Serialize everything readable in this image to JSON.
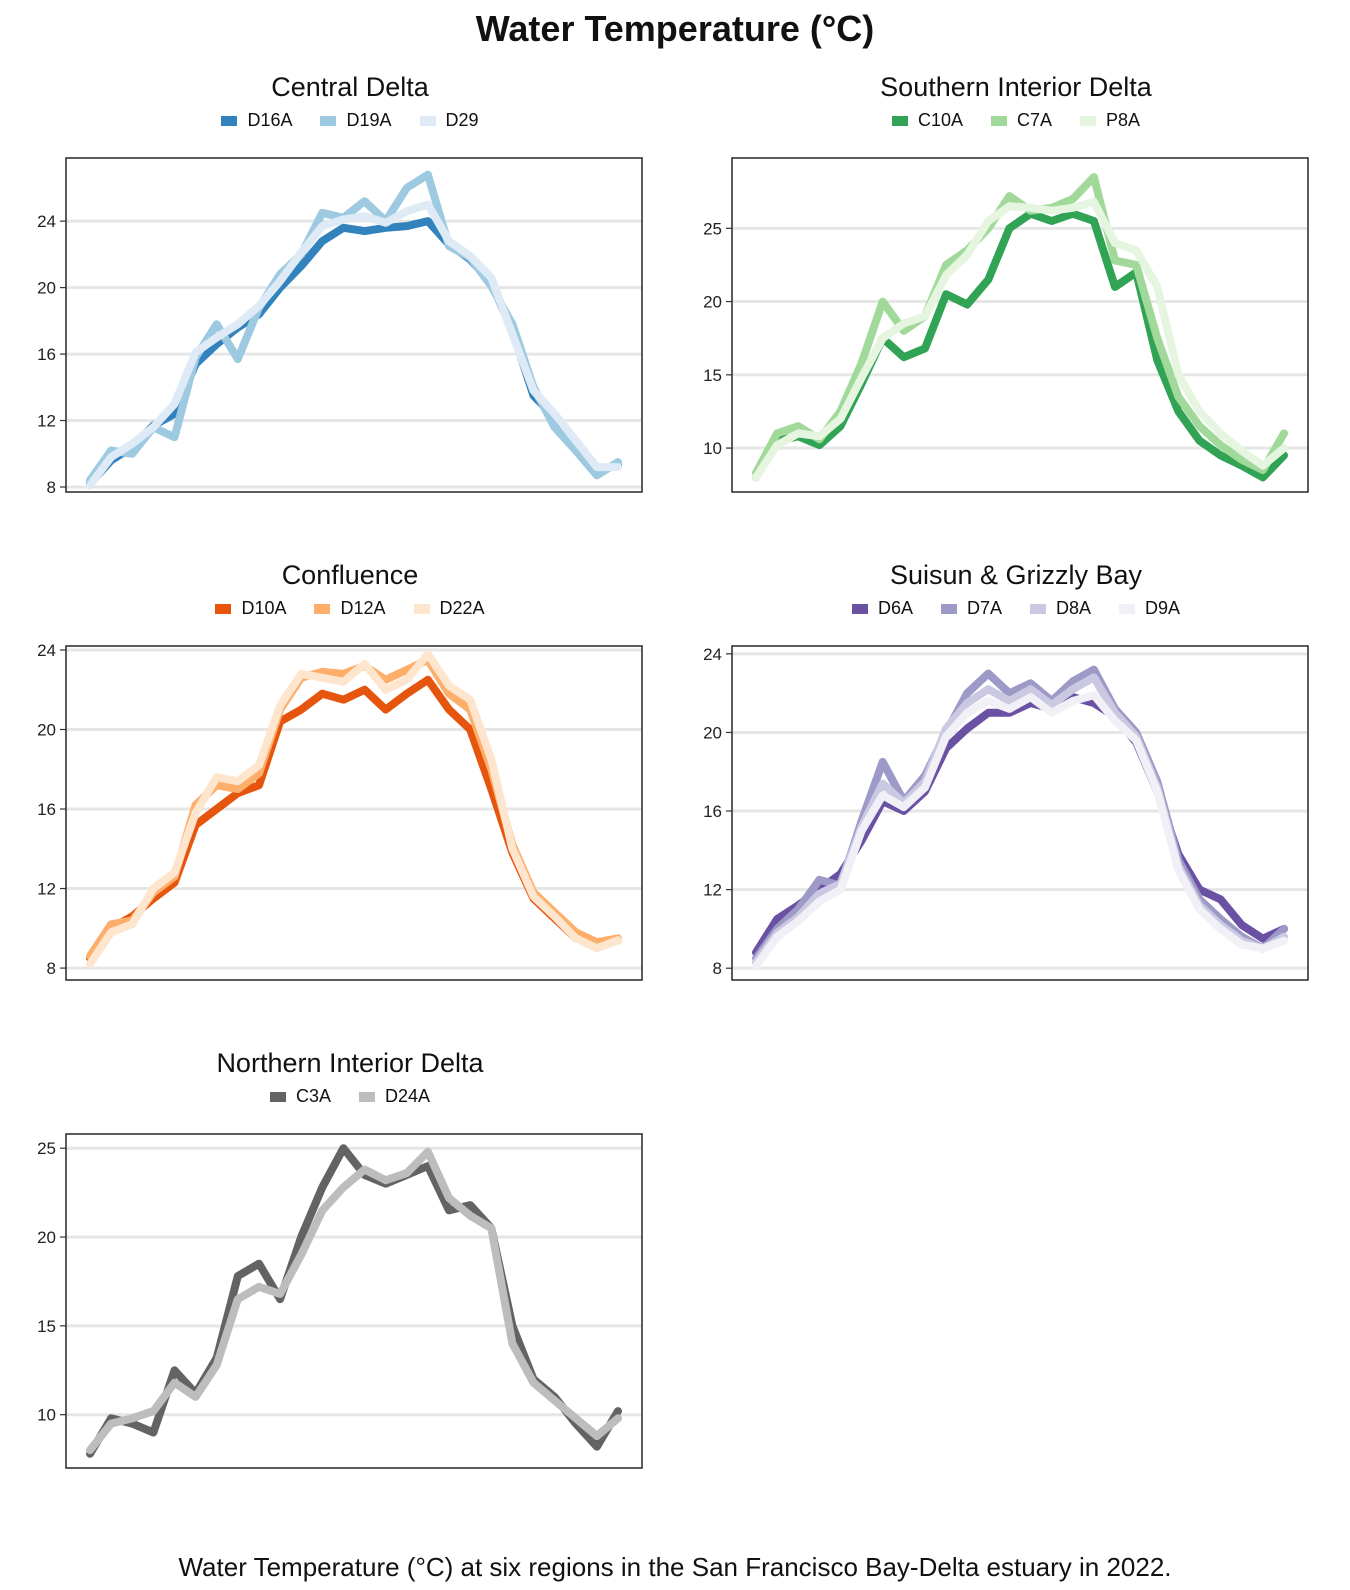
{
  "title": "Water Temperature (°C)",
  "caption": "Water Temperature (°C) at six regions in the San Francisco Bay-Delta estuary in 2022.",
  "chart_data": [
    {
      "type": "line",
      "title": "Central Delta",
      "xlabel": "",
      "ylabel": "",
      "ylim": [
        7.7,
        27.8
      ],
      "yticks": [
        8,
        12,
        16,
        20,
        24
      ],
      "x_range": [
        0,
        100
      ],
      "grid": "horizontal",
      "legend": "top",
      "series": [
        {
          "name": "D16A",
          "color": "#3182bd",
          "x": [
            0,
            4,
            8,
            12,
            16,
            20,
            24,
            28,
            32,
            36,
            40,
            44,
            48,
            52,
            56,
            60,
            64,
            68,
            72,
            76,
            80,
            84,
            88,
            92,
            96,
            100
          ],
          "y": [
            8.2,
            9.6,
            10.4,
            11.7,
            12.4,
            15.4,
            16.6,
            17.6,
            18.4,
            20.0,
            21.3,
            22.8,
            23.6,
            23.4,
            23.6,
            23.7,
            24.0,
            22.6,
            21.7,
            20.3,
            17.4,
            13.5,
            12.2,
            10.6,
            9.0,
            9.3
          ]
        },
        {
          "name": "D19A",
          "color": "#9ecae1",
          "x": [
            0,
            4,
            8,
            12,
            16,
            20,
            24,
            28,
            32,
            36,
            40,
            44,
            48,
            52,
            56,
            60,
            64,
            68,
            72,
            76,
            80,
            84,
            88,
            92,
            96,
            100
          ],
          "y": [
            8.4,
            10.2,
            10.0,
            11.6,
            11.0,
            15.8,
            17.8,
            15.7,
            18.8,
            20.8,
            22.0,
            24.5,
            24.2,
            25.2,
            24.0,
            26.0,
            26.8,
            22.5,
            21.8,
            20.1,
            17.8,
            14.0,
            11.6,
            10.2,
            8.7,
            9.5
          ]
        },
        {
          "name": "D29",
          "color": "#deebf7",
          "x": [
            0,
            4,
            8,
            12,
            16,
            20,
            24,
            28,
            32,
            36,
            40,
            44,
            48,
            52,
            56,
            60,
            64,
            68,
            72,
            76,
            80,
            84,
            88,
            92,
            96,
            100
          ],
          "y": [
            8.1,
            9.8,
            10.6,
            11.6,
            13.0,
            16.1,
            17.0,
            17.8,
            18.9,
            20.4,
            22.1,
            23.7,
            24.1,
            24.3,
            23.9,
            24.6,
            25.0,
            22.8,
            21.9,
            20.6,
            17.2,
            13.8,
            12.4,
            10.8,
            9.2,
            9.2
          ]
        }
      ]
    },
    {
      "type": "line",
      "title": "Southern Interior Delta",
      "xlabel": "",
      "ylabel": "",
      "ylim": [
        7.0,
        29.8
      ],
      "yticks": [
        10,
        15,
        20,
        25
      ],
      "x_range": [
        0,
        100
      ],
      "grid": "horizontal",
      "legend": "top",
      "series": [
        {
          "name": "C10A",
          "color": "#31a354",
          "x": [
            0,
            4,
            8,
            12,
            16,
            20,
            24,
            28,
            32,
            36,
            40,
            44,
            48,
            52,
            56,
            60,
            64,
            68,
            72,
            76,
            80,
            84,
            88,
            92,
            96,
            100
          ],
          "y": [
            8.0,
            10.5,
            10.8,
            10.2,
            11.5,
            14.4,
            17.5,
            16.2,
            16.8,
            20.5,
            19.8,
            21.5,
            25.0,
            26.0,
            25.5,
            26.0,
            25.5,
            21.0,
            22.0,
            16.0,
            12.5,
            10.5,
            9.5,
            8.8,
            8.0,
            9.5
          ]
        },
        {
          "name": "C7A",
          "color": "#a1d99b",
          "x": [
            0,
            4,
            8,
            12,
            16,
            20,
            24,
            28,
            32,
            36,
            40,
            44,
            48,
            52,
            56,
            60,
            64,
            68,
            72,
            76,
            80,
            84,
            88,
            92,
            96,
            100
          ],
          "y": [
            8.3,
            11.0,
            11.5,
            10.6,
            12.5,
            15.8,
            20.0,
            18.0,
            19.0,
            22.5,
            23.5,
            25.0,
            27.2,
            26.2,
            26.4,
            27.0,
            28.5,
            22.8,
            22.5,
            17.5,
            13.5,
            11.5,
            10.2,
            9.2,
            8.5,
            11.0
          ]
        },
        {
          "name": "P8A",
          "color": "#e5f5e0",
          "x": [
            0,
            4,
            8,
            12,
            16,
            20,
            24,
            28,
            32,
            36,
            40,
            44,
            48,
            52,
            56,
            60,
            64,
            68,
            72,
            76,
            80,
            84,
            88,
            92,
            96,
            100
          ],
          "y": [
            8.0,
            10.2,
            11.0,
            10.8,
            12.0,
            14.8,
            17.5,
            18.5,
            19.0,
            21.8,
            23.2,
            25.5,
            26.5,
            26.4,
            26.2,
            26.4,
            26.8,
            24.0,
            23.5,
            21.0,
            15.0,
            12.5,
            11.0,
            9.8,
            8.8,
            10.0
          ]
        }
      ]
    },
    {
      "type": "line",
      "title": "Confluence",
      "xlabel": "",
      "ylabel": "",
      "ylim": [
        7.4,
        24.2
      ],
      "yticks": [
        8,
        12,
        16,
        20,
        24
      ],
      "x_range": [
        0,
        100
      ],
      "grid": "horizontal",
      "legend": "top",
      "series": [
        {
          "name": "D10A",
          "color": "#e6550d",
          "x": [
            0,
            4,
            8,
            12,
            16,
            20,
            24,
            28,
            32,
            36,
            40,
            44,
            48,
            52,
            56,
            60,
            64,
            68,
            72,
            76,
            80,
            84,
            88,
            92,
            96,
            100
          ],
          "y": [
            8.5,
            10.0,
            10.6,
            11.5,
            12.3,
            15.2,
            16.0,
            16.8,
            17.2,
            20.4,
            21.0,
            21.8,
            21.5,
            22.0,
            21.0,
            21.8,
            22.5,
            21.0,
            20.0,
            17.0,
            13.8,
            11.5,
            10.5,
            9.5,
            9.2,
            9.4
          ]
        },
        {
          "name": "D12A",
          "color": "#fdae6b",
          "x": [
            0,
            4,
            8,
            12,
            16,
            20,
            24,
            28,
            32,
            36,
            40,
            44,
            48,
            52,
            56,
            60,
            64,
            68,
            72,
            76,
            80,
            84,
            88,
            92,
            96,
            100
          ],
          "y": [
            8.6,
            10.2,
            10.4,
            11.8,
            12.6,
            16.2,
            17.2,
            17.0,
            17.8,
            21.0,
            22.6,
            22.9,
            22.8,
            23.2,
            22.5,
            23.0,
            23.5,
            21.8,
            21.0,
            18.0,
            14.2,
            11.8,
            10.8,
            9.8,
            9.3,
            9.5
          ]
        },
        {
          "name": "D22A",
          "color": "#fee6ce",
          "x": [
            0,
            4,
            8,
            12,
            16,
            20,
            24,
            28,
            32,
            36,
            40,
            44,
            48,
            52,
            56,
            60,
            64,
            68,
            72,
            76,
            80,
            84,
            88,
            92,
            96,
            100
          ],
          "y": [
            8.2,
            9.8,
            10.2,
            12.0,
            12.8,
            15.8,
            17.6,
            17.4,
            18.2,
            21.2,
            22.8,
            22.6,
            22.4,
            23.3,
            22.0,
            22.5,
            23.8,
            22.2,
            21.5,
            18.5,
            14.0,
            11.6,
            10.6,
            9.5,
            9.0,
            9.4
          ]
        }
      ]
    },
    {
      "type": "line",
      "title": "Suisun & Grizzly Bay",
      "xlabel": "",
      "ylabel": "",
      "ylim": [
        7.4,
        24.4
      ],
      "yticks": [
        8,
        12,
        16,
        20,
        24
      ],
      "x_range": [
        0,
        100
      ],
      "grid": "horizontal",
      "legend": "top",
      "series": [
        {
          "name": "D6A",
          "color": "#6a51a3",
          "x": [
            0,
            4,
            8,
            12,
            16,
            20,
            24,
            28,
            32,
            36,
            40,
            44,
            48,
            52,
            56,
            60,
            64,
            68,
            72,
            76,
            80,
            84,
            88,
            92,
            96,
            100
          ],
          "y": [
            8.8,
            10.5,
            11.2,
            12.0,
            12.8,
            14.5,
            16.5,
            16.0,
            17.0,
            19.2,
            20.2,
            21.0,
            21.0,
            21.5,
            21.2,
            21.8,
            21.5,
            20.8,
            19.5,
            17.0,
            13.8,
            12.0,
            11.5,
            10.2,
            9.5,
            10.0
          ]
        },
        {
          "name": "D7A",
          "color": "#9e9ac8",
          "x": [
            0,
            4,
            8,
            12,
            16,
            20,
            24,
            28,
            32,
            36,
            40,
            44,
            48,
            52,
            56,
            60,
            64,
            68,
            72,
            76,
            80,
            84,
            88,
            92,
            96,
            100
          ],
          "y": [
            8.5,
            10.0,
            11.0,
            12.5,
            12.2,
            15.5,
            18.5,
            16.5,
            17.8,
            20.0,
            22.0,
            23.0,
            22.0,
            22.5,
            21.6,
            22.6,
            23.2,
            21.2,
            20.0,
            17.5,
            13.5,
            11.5,
            10.5,
            9.6,
            9.0,
            10.0
          ]
        },
        {
          "name": "D8A",
          "color": "#cbc9e2",
          "x": [
            0,
            4,
            8,
            12,
            16,
            20,
            24,
            28,
            32,
            36,
            40,
            44,
            48,
            52,
            56,
            60,
            64,
            68,
            72,
            76,
            80,
            84,
            88,
            92,
            96,
            100
          ],
          "y": [
            8.3,
            9.8,
            10.6,
            11.8,
            12.3,
            15.2,
            17.4,
            16.4,
            17.5,
            20.2,
            21.5,
            22.2,
            21.6,
            22.2,
            21.4,
            22.2,
            22.8,
            21.0,
            19.8,
            17.2,
            13.2,
            11.2,
            10.2,
            9.4,
            9.0,
            9.6
          ]
        },
        {
          "name": "D9A",
          "color": "#f2f0f7",
          "x": [
            0,
            4,
            8,
            12,
            16,
            20,
            24,
            28,
            32,
            36,
            40,
            44,
            48,
            52,
            56,
            60,
            64,
            68,
            72,
            76,
            80,
            84,
            88,
            92,
            96,
            100
          ],
          "y": [
            8.1,
            9.6,
            10.4,
            11.4,
            12.0,
            15.0,
            16.8,
            16.2,
            17.2,
            19.8,
            21.0,
            21.6,
            21.2,
            21.8,
            21.0,
            21.6,
            21.9,
            20.6,
            19.6,
            17.0,
            13.0,
            11.0,
            10.0,
            9.2,
            9.0,
            9.4
          ]
        }
      ]
    },
    {
      "type": "line",
      "title": "Northern Interior Delta",
      "xlabel": "",
      "ylabel": "",
      "ylim": [
        7.0,
        25.8
      ],
      "yticks": [
        10,
        15,
        20,
        25
      ],
      "x_range": [
        0,
        100
      ],
      "grid": "horizontal",
      "legend": "top",
      "series": [
        {
          "name": "C3A",
          "color": "#636363",
          "x": [
            0,
            4,
            8,
            12,
            16,
            20,
            24,
            28,
            32,
            36,
            40,
            44,
            48,
            52,
            56,
            60,
            64,
            68,
            72,
            76,
            80,
            84,
            88,
            92,
            96,
            100
          ],
          "y": [
            7.8,
            9.8,
            9.5,
            9.0,
            12.5,
            11.2,
            13.2,
            17.8,
            18.5,
            16.5,
            20.0,
            22.8,
            25.0,
            23.5,
            23.0,
            23.5,
            24.0,
            21.5,
            21.8,
            20.5,
            15.0,
            12.0,
            11.0,
            9.5,
            8.2,
            10.2
          ]
        },
        {
          "name": "D24A",
          "color": "#bdbdbd",
          "x": [
            0,
            4,
            8,
            12,
            16,
            20,
            24,
            28,
            32,
            36,
            40,
            44,
            48,
            52,
            56,
            60,
            64,
            68,
            72,
            76,
            80,
            84,
            88,
            92,
            96,
            100
          ],
          "y": [
            8.0,
            9.5,
            9.8,
            10.2,
            11.8,
            11.0,
            12.8,
            16.5,
            17.2,
            16.8,
            19.0,
            21.5,
            22.8,
            23.8,
            23.2,
            23.6,
            24.8,
            22.2,
            21.2,
            20.5,
            14.0,
            11.8,
            10.8,
            9.8,
            8.8,
            9.8
          ]
        }
      ]
    }
  ]
}
